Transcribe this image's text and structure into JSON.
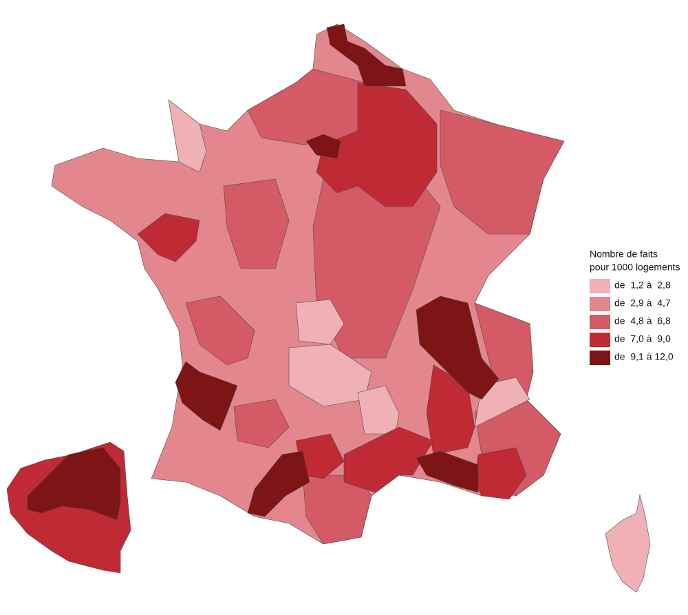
{
  "legend": {
    "title": [
      "Nombre de faits",
      "pour 1000 logements"
    ],
    "classes": [
      {
        "label": "de  1,2 à  2,8",
        "color": "#f0b1b6"
      },
      {
        "label": "de  2,9 à  4,7",
        "color": "#e3868e"
      },
      {
        "label": "de  4,8 à  6,8",
        "color": "#d45a65"
      },
      {
        "label": "de  7,0 à  9,0",
        "color": "#bf2a35"
      },
      {
        "label": "de  9,1 à 12,0",
        "color": "#7d1416"
      }
    ]
  }
}
